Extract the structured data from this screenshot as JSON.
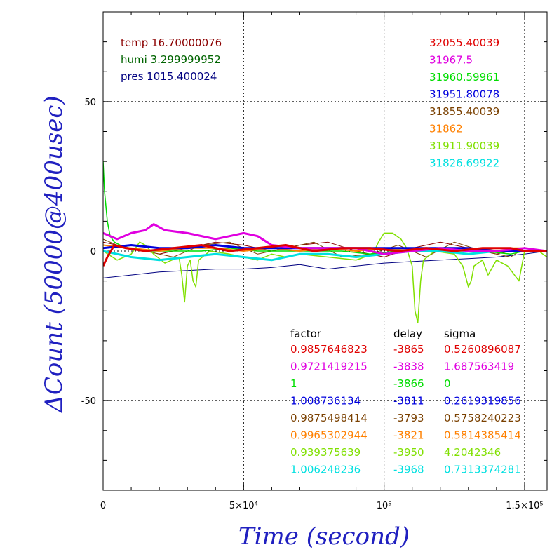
{
  "chart_data": {
    "type": "line",
    "xlabel": "Time (second)",
    "ylabel": "ΔCount (50000@400usec)",
    "xlim": [
      0,
      158000
    ],
    "ylim": [
      -80,
      80
    ],
    "grid": "dotted",
    "x_ticks": [
      {
        "value": 0,
        "label": "0"
      },
      {
        "value": 50000,
        "label": "5×10⁴"
      },
      {
        "value": 100000,
        "label": "10⁵"
      },
      {
        "value": 150000,
        "label": "1.5×10⁵"
      }
    ],
    "y_ticks": [
      {
        "value": 50,
        "label": "50"
      },
      {
        "value": 0,
        "label": "0"
      },
      {
        "value": -50,
        "label": "-50"
      }
    ],
    "env": [
      {
        "text": "temp 16.70000076",
        "color": "#8b0000"
      },
      {
        "text": "humi 3.299999952",
        "color": "#006400"
      },
      {
        "text": "pres 1015.400024",
        "color": "#000080"
      }
    ],
    "table_headers": [
      "factor",
      "delay",
      "sigma"
    ],
    "series": [
      {
        "mean": "32055.40039",
        "factor": "0.9857646823",
        "delay": "-3865",
        "sigma": "0.5260896087",
        "color": "#e00000",
        "width": 3,
        "points": [
          [
            0,
            -5
          ],
          [
            1500,
            -2
          ],
          [
            4000,
            2
          ],
          [
            8000,
            1
          ],
          [
            15000,
            0
          ],
          [
            25000,
            1
          ],
          [
            35000,
            2
          ],
          [
            45000,
            0
          ],
          [
            55000,
            1
          ],
          [
            65000,
            2
          ],
          [
            75000,
            0
          ],
          [
            85000,
            1
          ],
          [
            95000,
            1
          ],
          [
            105000,
            0
          ],
          [
            115000,
            1
          ],
          [
            125000,
            0
          ],
          [
            135000,
            1
          ],
          [
            145000,
            1
          ],
          [
            150000,
            0
          ],
          [
            158000,
            0
          ]
        ]
      },
      {
        "mean": "31967.5",
        "factor": "0.9721419215",
        "delay": "-3838",
        "sigma": "1.687563419",
        "color": "#e000e0",
        "width": 3,
        "points": [
          [
            0,
            6
          ],
          [
            5000,
            4
          ],
          [
            10000,
            6
          ],
          [
            15000,
            7
          ],
          [
            18000,
            9
          ],
          [
            22000,
            7
          ],
          [
            30000,
            6
          ],
          [
            40000,
            4
          ],
          [
            45000,
            5
          ],
          [
            50000,
            6
          ],
          [
            55000,
            5
          ],
          [
            60000,
            2
          ],
          [
            70000,
            1
          ],
          [
            80000,
            1
          ],
          [
            90000,
            1
          ],
          [
            100000,
            -1
          ],
          [
            110000,
            0
          ],
          [
            120000,
            1
          ],
          [
            130000,
            0
          ],
          [
            140000,
            0
          ],
          [
            150000,
            1
          ],
          [
            158000,
            0
          ]
        ]
      },
      {
        "mean": "31960.59961",
        "factor": "1",
        "delay": "-3866",
        "sigma": "0",
        "color": "#00dd00",
        "width": 1.5,
        "points": [
          [
            0,
            30
          ],
          [
            500,
            20
          ],
          [
            1500,
            10
          ],
          [
            2500,
            5
          ],
          [
            4000,
            3
          ],
          [
            8000,
            1
          ],
          [
            15000,
            0
          ],
          [
            25000,
            0
          ],
          [
            35000,
            0
          ],
          [
            45000,
            1
          ],
          [
            55000,
            0
          ],
          [
            65000,
            0
          ],
          [
            75000,
            0
          ],
          [
            85000,
            0
          ],
          [
            95000,
            -1
          ],
          [
            105000,
            0
          ],
          [
            115000,
            0
          ],
          [
            125000,
            0
          ],
          [
            135000,
            0
          ],
          [
            145000,
            -1
          ],
          [
            150000,
            0
          ],
          [
            158000,
            0
          ]
        ]
      },
      {
        "mean": "31951.80078",
        "factor": "1.008736134",
        "delay": "-3811",
        "sigma": "0.2619319856",
        "color": "#0000dd",
        "width": 3,
        "points": [
          [
            0,
            1
          ],
          [
            10000,
            2
          ],
          [
            20000,
            1
          ],
          [
            30000,
            1
          ],
          [
            40000,
            2
          ],
          [
            50000,
            1
          ],
          [
            60000,
            1
          ],
          [
            70000,
            1
          ],
          [
            80000,
            1
          ],
          [
            90000,
            1
          ],
          [
            100000,
            1
          ],
          [
            110000,
            1
          ],
          [
            120000,
            1
          ],
          [
            130000,
            1
          ],
          [
            140000,
            0
          ],
          [
            150000,
            0
          ],
          [
            158000,
            0
          ]
        ]
      },
      {
        "mean": "31855.40039",
        "factor": "0.9875498414",
        "delay": "-3793",
        "sigma": "0.5758240223",
        "color": "#7a4000",
        "width": 1,
        "points": [
          [
            0,
            4
          ],
          [
            5000,
            2
          ],
          [
            15000,
            0
          ],
          [
            25000,
            -2
          ],
          [
            35000,
            2
          ],
          [
            45000,
            3
          ],
          [
            55000,
            -1
          ],
          [
            65000,
            1
          ],
          [
            75000,
            3
          ],
          [
            85000,
            -2
          ],
          [
            95000,
            -1
          ],
          [
            105000,
            2
          ],
          [
            115000,
            -2
          ],
          [
            125000,
            3
          ],
          [
            135000,
            0
          ],
          [
            145000,
            -2
          ],
          [
            150000,
            1
          ],
          [
            158000,
            0
          ]
        ]
      },
      {
        "mean": "31862",
        "factor": "0.9965302944",
        "delay": "-3821",
        "sigma": "0.5814385414",
        "color": "#ff8000",
        "width": 2,
        "points": [
          [
            0,
            2
          ],
          [
            10000,
            1
          ],
          [
            20000,
            0
          ],
          [
            30000,
            1
          ],
          [
            40000,
            1
          ],
          [
            50000,
            0
          ],
          [
            60000,
            1
          ],
          [
            70000,
            0
          ],
          [
            80000,
            1
          ],
          [
            90000,
            0
          ],
          [
            100000,
            1
          ],
          [
            110000,
            0
          ],
          [
            120000,
            1
          ],
          [
            130000,
            0
          ],
          [
            140000,
            1
          ],
          [
            150000,
            1
          ],
          [
            158000,
            0
          ]
        ]
      },
      {
        "mean": "31911.90039",
        "factor": "0.939375639",
        "delay": "-3950",
        "sigma": "4.2042346",
        "color": "#80e000",
        "width": 1.5,
        "points": [
          [
            0,
            0
          ],
          [
            5000,
            -3
          ],
          [
            10000,
            -1
          ],
          [
            13000,
            3
          ],
          [
            15000,
            2
          ],
          [
            18000,
            -1
          ],
          [
            22000,
            -4
          ],
          [
            27000,
            -2
          ],
          [
            28000,
            -8
          ],
          [
            29000,
            -17
          ],
          [
            30000,
            -5
          ],
          [
            31000,
            -3
          ],
          [
            32000,
            -10
          ],
          [
            33000,
            -12
          ],
          [
            34000,
            -3
          ],
          [
            38000,
            0
          ],
          [
            45000,
            -1
          ],
          [
            55000,
            -3
          ],
          [
            60000,
            -1
          ],
          [
            65000,
            -2
          ],
          [
            70000,
            -1
          ],
          [
            80000,
            -2
          ],
          [
            90000,
            -3
          ],
          [
            96000,
            -1
          ],
          [
            98000,
            3
          ],
          [
            100000,
            6
          ],
          [
            103000,
            6
          ],
          [
            106000,
            4
          ],
          [
            108000,
            1
          ],
          [
            110000,
            -5
          ],
          [
            111000,
            -20
          ],
          [
            112000,
            -24
          ],
          [
            113000,
            -10
          ],
          [
            114000,
            -3
          ],
          [
            118000,
            0
          ],
          [
            125000,
            -1
          ],
          [
            128000,
            -5
          ],
          [
            130000,
            -12
          ],
          [
            131000,
            -10
          ],
          [
            132000,
            -5
          ],
          [
            135000,
            -3
          ],
          [
            137000,
            -8
          ],
          [
            140000,
            -3
          ],
          [
            144000,
            -5
          ],
          [
            148000,
            -10
          ],
          [
            150000,
            0
          ],
          [
            155000,
            0
          ],
          [
            158000,
            -2
          ]
        ]
      },
      {
        "mean": "31826.69922",
        "factor": "1.006248236",
        "delay": "-3968",
        "sigma": "0.7313374281",
        "color": "#00e0e0",
        "width": 3,
        "points": [
          [
            0,
            0
          ],
          [
            10000,
            -2
          ],
          [
            20000,
            -3
          ],
          [
            30000,
            -2
          ],
          [
            40000,
            -1
          ],
          [
            50000,
            -2
          ],
          [
            60000,
            -3
          ],
          [
            70000,
            -1
          ],
          [
            80000,
            -1
          ],
          [
            90000,
            -2
          ],
          [
            100000,
            -1
          ],
          [
            110000,
            0
          ],
          [
            120000,
            0
          ],
          [
            130000,
            -1
          ],
          [
            140000,
            0
          ],
          [
            150000,
            0
          ],
          [
            158000,
            0
          ]
        ]
      }
    ],
    "pres_trace": {
      "color": "#000080",
      "points": [
        [
          0,
          -9
        ],
        [
          10000,
          -8
        ],
        [
          20000,
          -7
        ],
        [
          30000,
          -6.5
        ],
        [
          40000,
          -6
        ],
        [
          50000,
          -6
        ],
        [
          60000,
          -5.5
        ],
        [
          70000,
          -4.5
        ],
        [
          80000,
          -6
        ],
        [
          90000,
          -5
        ],
        [
          100000,
          -4
        ],
        [
          110000,
          -3.5
        ],
        [
          120000,
          -3
        ],
        [
          130000,
          -2.5
        ],
        [
          140000,
          -2
        ],
        [
          150000,
          -1
        ],
        [
          158000,
          0
        ]
      ]
    },
    "temp_trace": {
      "color": "#8b0000",
      "points": [
        [
          0,
          3
        ],
        [
          10000,
          1
        ],
        [
          20000,
          -1
        ],
        [
          30000,
          1
        ],
        [
          40000,
          3
        ],
        [
          50000,
          2
        ],
        [
          60000,
          0
        ],
        [
          70000,
          2
        ],
        [
          80000,
          3
        ],
        [
          90000,
          0
        ],
        [
          100000,
          -2
        ],
        [
          110000,
          1
        ],
        [
          120000,
          3
        ],
        [
          130000,
          1
        ],
        [
          140000,
          -1
        ],
        [
          150000,
          1
        ],
        [
          158000,
          0
        ]
      ]
    }
  }
}
